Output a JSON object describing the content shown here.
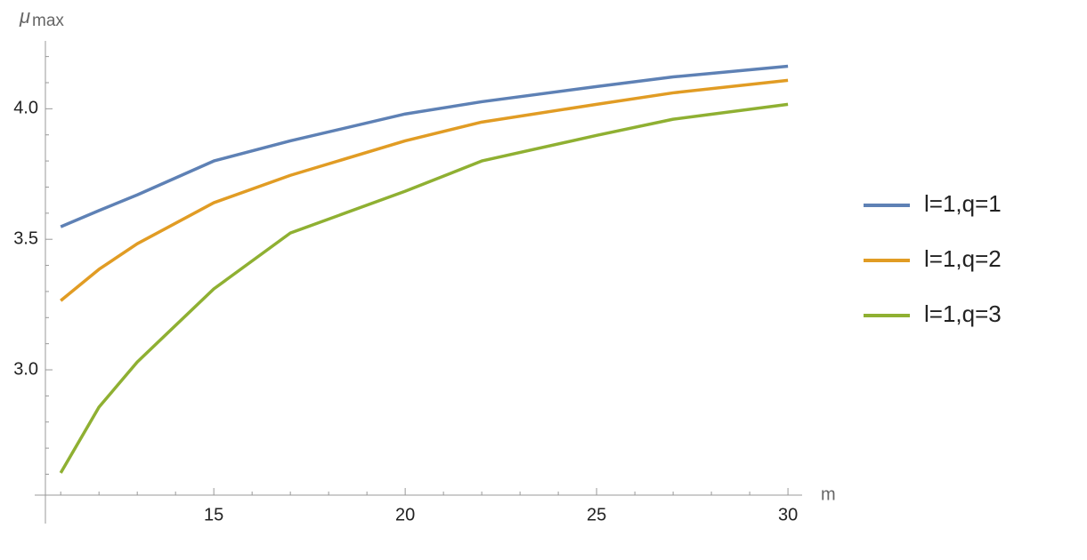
{
  "chart_data": {
    "type": "line",
    "x_label": "m",
    "y_label": "μ",
    "y_label_subscript": "max",
    "x": [
      11,
      12,
      13,
      15,
      17,
      20,
      22,
      25,
      27,
      30
    ],
    "series": [
      {
        "name": "l=1,q=1",
        "color": "#5e81b5",
        "values": [
          3.548,
          3.61,
          3.67,
          3.8,
          3.877,
          3.98,
          4.027,
          4.085,
          4.122,
          4.163
        ]
      },
      {
        "name": "l=1,q=2",
        "color": "#e19c24",
        "values": [
          3.265,
          3.385,
          3.483,
          3.64,
          3.745,
          3.877,
          3.949,
          4.017,
          4.061,
          4.109
        ]
      },
      {
        "name": "l=1,q=3",
        "color": "#8fb032",
        "values": [
          2.605,
          2.857,
          3.03,
          3.31,
          3.524,
          3.684,
          3.8,
          3.898,
          3.96,
          4.017
        ]
      }
    ],
    "xlim": [
      10.6,
      30.37
    ],
    "ylim": [
      2.52,
      4.26
    ],
    "xticks": [
      15,
      20,
      25,
      30
    ],
    "yticks": [
      {
        "value": 3.0,
        "label": "3.0"
      },
      3.5,
      {
        "value": 4.0,
        "label": "4.0"
      }
    ],
    "xminorticks": [
      11,
      12,
      13,
      14,
      16,
      17,
      18,
      19,
      21,
      22,
      23,
      24,
      26,
      27,
      28,
      29
    ],
    "yminorticks": [
      2.6,
      2.7,
      2.8,
      2.9,
      3.1,
      3.2,
      3.3,
      3.4,
      3.6,
      3.7,
      3.8,
      3.9,
      4.1,
      4.2
    ],
    "legend": "right"
  }
}
